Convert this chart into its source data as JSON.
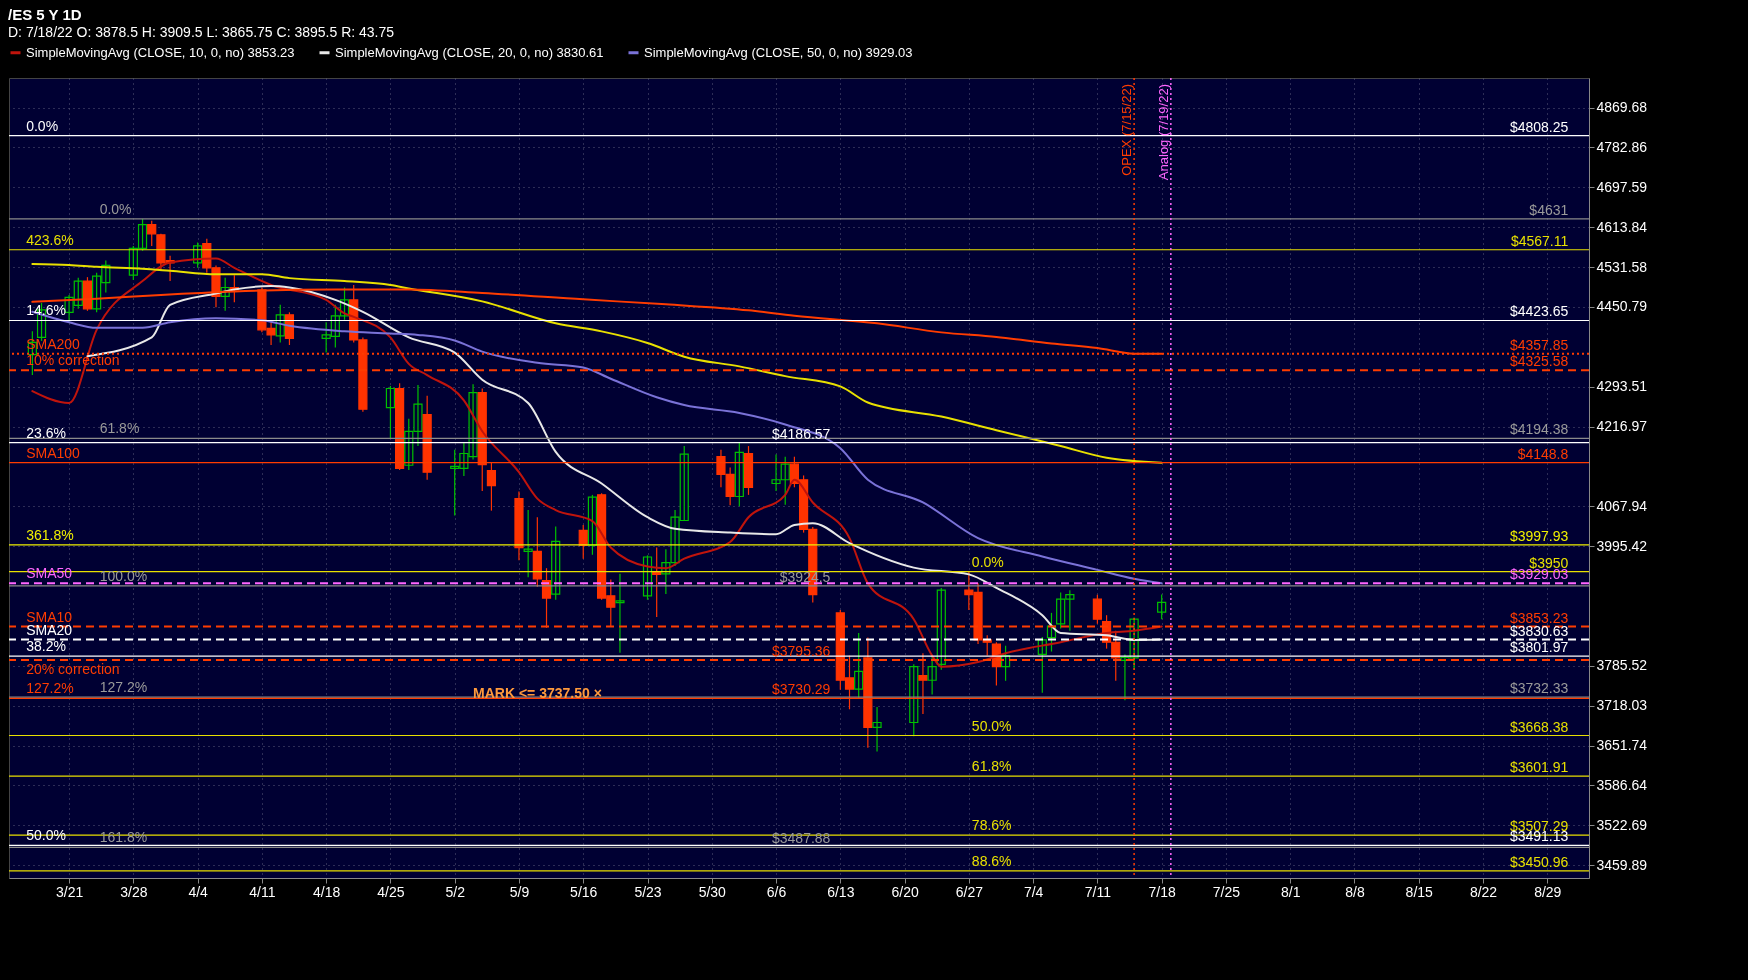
{
  "chart_data": {
    "type": "candlestick",
    "title": "/ES 5 Y 1D",
    "subtitle": "D: 7/18/22 O: 3878.5 H: 3909.5 L: 3865.75 C: 3895.5 R: 43.75",
    "x": [
      "--03-17",
      "--03-18",
      "--03-21",
      "--03-22",
      "--03-23",
      "--03-24",
      "--03-25",
      "--03-28",
      "--03-29",
      "--03-30",
      "--03-31",
      "--04-01",
      "--04-04",
      "--04-05",
      "--04-06",
      "--04-07",
      "--04-08",
      "--04-11",
      "--04-12",
      "--04-13",
      "--04-14",
      "--04-18",
      "--04-19",
      "--04-20",
      "--04-21",
      "--04-22",
      "--04-25",
      "--04-26",
      "--04-27",
      "--04-28",
      "--04-29",
      "--05-02",
      "--05-03",
      "--05-04",
      "--05-05",
      "--05-06",
      "--05-09",
      "--05-10",
      "--05-11",
      "--05-12",
      "--05-13",
      "--05-16",
      "--05-17",
      "--05-18",
      "--05-19",
      "--05-20",
      "--05-23",
      "--05-24",
      "--05-25",
      "--05-26",
      "--05-27",
      "--05-31",
      "--06-01",
      "--06-02",
      "--06-03",
      "--06-06",
      "--06-07",
      "--06-08",
      "--06-09",
      "--06-10",
      "--06-13",
      "--06-14",
      "--06-15",
      "--06-16",
      "--06-17",
      "--06-21",
      "--06-22",
      "--06-23",
      "--06-24",
      "--06-27",
      "--06-28",
      "--06-29",
      "--06-30",
      "--07-01",
      "--07-05",
      "--07-06",
      "--07-07",
      "--07-08",
      "--07-11",
      "--07-12",
      "--07-13",
      "--07-14",
      "--07-15",
      "--07-18"
    ],
    "ohlc": [
      [
        4356,
        4402,
        4316,
        4380
      ],
      [
        4390,
        4459,
        4383,
        4445
      ],
      [
        4440,
        4475,
        4420,
        4470
      ],
      [
        4454,
        4510,
        4447,
        4503
      ],
      [
        4503,
        4511,
        4443,
        4447
      ],
      [
        4447,
        4520,
        4440,
        4513
      ],
      [
        4500,
        4545,
        4480,
        4535
      ],
      [
        4515,
        4575,
        4505,
        4570
      ],
      [
        4570,
        4631,
        4565,
        4619
      ],
      [
        4619,
        4627,
        4575,
        4600
      ],
      [
        4598,
        4600,
        4525,
        4540
      ],
      [
        4545,
        4555,
        4503,
        4540
      ],
      [
        4540,
        4582,
        4530,
        4575
      ],
      [
        4580,
        4590,
        4520,
        4530
      ],
      [
        4530,
        4535,
        4450,
        4472
      ],
      [
        4472,
        4510,
        4443,
        4490
      ],
      [
        4490,
        4515,
        4460,
        4485
      ],
      [
        4485,
        4490,
        4400,
        4405
      ],
      [
        4408,
        4420,
        4375,
        4395
      ],
      [
        4393,
        4455,
        4380,
        4435
      ],
      [
        4435,
        4440,
        4375,
        4388
      ],
      [
        4388,
        4420,
        4360,
        4395
      ],
      [
        4392,
        4455,
        4370,
        4433
      ],
      [
        4433,
        4490,
        4425,
        4465
      ],
      [
        4465,
        4495,
        4380,
        4385
      ],
      [
        4385,
        4390,
        4245,
        4250
      ],
      [
        4253,
        4295,
        4195,
        4290
      ],
      [
        4290,
        4300,
        4135,
        4138
      ],
      [
        4144,
        4232,
        4135,
        4208
      ],
      [
        4208,
        4297,
        4180,
        4260
      ],
      [
        4240,
        4276,
        4117,
        4131
      ],
      [
        4138,
        4173,
        4051,
        4142
      ],
      [
        4138,
        4187,
        4124,
        4166
      ],
      [
        4160,
        4298,
        4155,
        4282
      ],
      [
        4282,
        4290,
        4096,
        4145
      ],
      [
        4134,
        4150,
        4060,
        4106
      ],
      [
        4082,
        4095,
        3970,
        3993
      ],
      [
        3986,
        4061,
        3940,
        3990
      ],
      [
        3986,
        4048,
        3923,
        3937
      ],
      [
        3934,
        3956,
        3851,
        3903
      ],
      [
        3910,
        4031,
        3900,
        4004
      ],
      [
        4024,
        4034,
        3973,
        3997
      ],
      [
        3997,
        4089,
        3980,
        4085
      ],
      [
        4089,
        4092,
        3900,
        3903
      ],
      [
        3907,
        3936,
        3854,
        3887
      ],
      [
        3895,
        3946,
        3808,
        3898
      ],
      [
        3907,
        3979,
        3900,
        3976
      ],
      [
        3950,
        3993,
        3870,
        3945
      ],
      [
        3946,
        3990,
        3910,
        3966
      ],
      [
        3966,
        4061,
        3960,
        4048
      ],
      [
        4042,
        4180,
        4041,
        4165
      ],
      [
        4160,
        4173,
        4103,
        4127
      ],
      [
        4127,
        4140,
        4070,
        4086
      ],
      [
        4086,
        4187,
        4068,
        4168
      ],
      [
        4166,
        4180,
        4089,
        4103
      ],
      [
        4110,
        4164,
        4096,
        4117
      ],
      [
        4117,
        4160,
        4071,
        4146
      ],
      [
        4146,
        4160,
        4103,
        4110
      ],
      [
        4117,
        4125,
        4020,
        4026
      ],
      [
        4026,
        4030,
        3895,
        3909
      ],
      [
        3877,
        3882,
        3745,
        3761
      ],
      [
        3765,
        3803,
        3712,
        3746
      ],
      [
        3746,
        3842,
        3730,
        3776
      ],
      [
        3799,
        3834,
        3648,
        3682
      ],
      [
        3682,
        3716,
        3642,
        3690
      ],
      [
        3690,
        3788,
        3667,
        3784
      ],
      [
        3769,
        3807,
        3704,
        3761
      ],
      [
        3761,
        3803,
        3737,
        3784
      ],
      [
        3788,
        3921,
        3779,
        3917
      ],
      [
        3917,
        3949,
        3882,
        3909
      ],
      [
        3913,
        3929,
        3823,
        3830
      ],
      [
        3830,
        3838,
        3803,
        3826
      ],
      [
        3823,
        3826,
        3752,
        3784
      ],
      [
        3784,
        3820,
        3760,
        3803
      ],
      [
        3805,
        3835,
        3740,
        3830
      ],
      [
        3834,
        3877,
        3810,
        3854
      ],
      [
        3858,
        3913,
        3850,
        3901
      ],
      [
        3901,
        3917,
        3846,
        3909
      ],
      [
        3901,
        3909,
        3858,
        3866
      ],
      [
        3862,
        3873,
        3815,
        3826
      ],
      [
        3826,
        3846,
        3760,
        3799
      ],
      [
        3795,
        3805,
        3727,
        3800
      ],
      [
        3799,
        3869,
        3779,
        3866
      ],
      [
        3878.5,
        3909.5,
        3865.75,
        3895.5
      ]
    ],
    "colors": [
      "#00c000",
      "#00c000",
      "#00c000",
      "#00c000",
      "#ff3300",
      "#00c000",
      "#00c000",
      "#00c000",
      "#00c000",
      "#ff3300",
      "#ff3300",
      "#ff3300",
      "#00c000",
      "#ff3300",
      "#ff3300",
      "#00c000",
      "#ff3300",
      "#ff3300",
      "#ff3300",
      "#00c000",
      "#ff3300",
      "#00c000",
      "#00c000",
      "#00c000",
      "#ff3300",
      "#ff3300",
      "#00c000",
      "#ff3300",
      "#00c000",
      "#00c000",
      "#ff3300",
      "#00c000",
      "#00c000",
      "#00c000",
      "#ff3300",
      "#ff3300",
      "#ff3300",
      "#00c000",
      "#ff3300",
      "#ff3300",
      "#00c000",
      "#ff3300",
      "#00c000",
      "#ff3300",
      "#ff3300",
      "#00c000",
      "#00c000",
      "#ff3300",
      "#00c000",
      "#00c000",
      "#00c000",
      "#ff3300",
      "#ff3300",
      "#00c000",
      "#ff3300",
      "#00c000",
      "#00c000",
      "#ff3300",
      "#ff3300",
      "#ff3300",
      "#ff3300",
      "#ff3300",
      "#00c000",
      "#ff3300",
      "#00c000",
      "#00c000",
      "#ff3300",
      "#00c000",
      "#00c000",
      "#ff3300",
      "#ff3300",
      "#ff3300",
      "#ff3300",
      "#00c000",
      "#00c000",
      "#00c000",
      "#00c000",
      "#00c000",
      "#ff3300",
      "#ff3300",
      "#ff3300",
      "#00c000",
      "#00c000",
      "#00c000"
    ],
    "series": [
      {
        "type": "line",
        "name": "SimpleMovingAvg (CLOSE, 10, 0, no) 3853.23",
        "color": "#c0140c",
        "x": [
          "--03-17",
          "--03-21",
          "--03-24",
          "--03-29",
          "--04-01",
          "--04-06",
          "--04-08",
          "--04-12",
          "--04-18",
          "--04-20",
          "--04-21",
          "--04-25",
          "--04-27",
          "--04-29",
          "--05-03",
          "--05-05",
          "--05-09",
          "--05-11",
          "--05-13",
          "--05-17",
          "--05-19",
          "--05-23",
          "--05-25",
          "--05-27",
          "--06-01",
          "--06-03",
          "--06-07",
          "--06-08",
          "--06-10",
          "--06-14",
          "--06-16",
          "--06-21",
          "--06-23",
          "--06-24",
          "--06-28",
          "--07-01",
          "--07-07",
          "--07-12",
          "--07-15",
          "--07-18"
        ],
        "values": [
          4285,
          4262,
          4405,
          4503,
          4541,
          4549,
          4530,
          4495,
          4465,
          4438,
          4431,
          4390,
          4338,
          4316,
          4267,
          4208,
          4131,
          4082,
          4061,
          4041,
          3993,
          3959,
          3956,
          3973,
          4003,
          4048,
          4089,
          4117,
          4075,
          4010,
          3929,
          3866,
          3803,
          3784,
          3792,
          3807,
          3826,
          3842,
          3846,
          3853.23
        ]
      },
      {
        "type": "line",
        "name": "SimpleMovingAvg (CLOSE, 20, 0, no) 3830.61",
        "color": "#e8e8e8",
        "x": [
          "--03-23",
          "--03-30",
          "--04-01",
          "--04-06",
          "--04-08",
          "--04-12",
          "--04-14",
          "--04-19",
          "--04-22",
          "--04-27",
          "--05-02",
          "--05-05",
          "--05-10",
          "--05-13",
          "--05-18",
          "--05-23",
          "--05-26",
          "--06-01",
          "--06-06",
          "--06-08",
          "--06-10",
          "--06-14",
          "--06-21",
          "--06-27",
          "--06-30",
          "--07-05",
          "--07-07",
          "--07-12",
          "--07-15",
          "--07-18"
        ],
        "values": [
          4353,
          4390,
          4455,
          4478,
          4486,
          4493,
          4490,
          4465,
          4441,
          4390,
          4360,
          4307,
          4262,
          4169,
          4110,
          4048,
          4027,
          4020,
          4017,
          4034,
          4037,
          4001,
          3957,
          3945,
          3921,
          3873,
          3842,
          3838,
          3830,
          3830.61
        ]
      },
      {
        "type": "line",
        "name": "SimpleMovingAvg (CLOSE, 50, 0, no) 3929.03",
        "color": "#7a72d8",
        "x": [
          "--03-17",
          "--03-21",
          "--03-24",
          "--03-29",
          "--04-01",
          "--04-06",
          "--04-11",
          "--04-14",
          "--04-20",
          "--04-25",
          "--04-28",
          "--05-02",
          "--05-05",
          "--05-11",
          "--05-16",
          "--05-19",
          "--05-24",
          "--05-27",
          "--06-02",
          "--06-07",
          "--06-13",
          "--06-16",
          "--06-22",
          "--06-28",
          "--07-05",
          "--07-11",
          "--07-15",
          "--07-18"
        ],
        "values": [
          4441,
          4420,
          4409,
          4409,
          4420,
          4428,
          4424,
          4413,
          4402,
          4398,
          4395,
          4384,
          4362,
          4340,
          4331,
          4309,
          4273,
          4258,
          4243,
          4221,
          4176,
          4117,
          4075,
          4010,
          3977,
          3953,
          3937,
          3929.03
        ]
      },
      {
        "type": "line",
        "color": "#e8e000",
        "x": [
          "--03-17",
          "--03-21",
          "--03-24",
          "--03-29",
          "--04-01",
          "--04-06",
          "--04-11",
          "--04-14",
          "--04-20",
          "--04-25",
          "--04-27",
          "--05-05",
          "--05-13",
          "--05-18",
          "--05-23",
          "--05-27",
          "--06-02",
          "--06-07",
          "--06-13",
          "--06-16",
          "--06-24",
          "--06-30",
          "--07-07",
          "--07-12",
          "--07-18"
        ],
        "values": [
          4538,
          4536,
          4532,
          4528,
          4524,
          4517,
          4517,
          4509,
          4503,
          4495,
          4488,
          4462,
          4418,
          4402,
          4379,
          4352,
          4333,
          4314,
          4294,
          4263,
          4236,
          4210,
          4180,
          4158,
          4148.79
        ]
      },
      {
        "type": "line",
        "color": "#ff3c00",
        "x": [
          "--03-17",
          "--03-24",
          "--03-31",
          "--04-08",
          "--04-19",
          "--04-27",
          "--05-05",
          "--05-16",
          "--05-25",
          "--06-03",
          "--06-08",
          "--06-17",
          "--06-24",
          "--06-30",
          "--07-06",
          "--07-11",
          "--07-15",
          "--07-18"
        ],
        "values": [
          4461,
          4467,
          4475,
          4482,
          4486,
          4486,
          4479,
          4466,
          4456,
          4444,
          4433,
          4418,
          4400,
          4391,
          4378,
          4369,
          4358,
          4357.84
        ]
      }
    ],
    "ref_lines": [
      {
        "axis": "y",
        "value": 4808.25,
        "label": "$4808.25",
        "color": "#ffffff",
        "line_style": "solid"
      },
      {
        "axis": "y",
        "value": 4631,
        "label": "$4631",
        "color": "#8a8a8a",
        "line_style": "solid"
      },
      {
        "axis": "y",
        "value": 4567.11,
        "label": "$4567.11",
        "color": "#e8e000",
        "line_style": "solid"
      },
      {
        "axis": "y",
        "value": 4423.65,
        "label": "$4423.65",
        "color": "#ffffff",
        "line_style": "solid"
      },
      {
        "axis": "y",
        "value": 4357.85,
        "label": "$4357.85",
        "color": "#ff3c00",
        "line_style": "dotted"
      },
      {
        "axis": "y",
        "value": 4325.58,
        "label": "$4325.58",
        "color": "#ff3c00",
        "line_style": "dashed"
      },
      {
        "axis": "y",
        "value": 4194.38,
        "label": "$4194.38",
        "color": "#8a8a8a",
        "line_style": "solid"
      },
      {
        "axis": "y",
        "value": 4186.57,
        "label": "$4186.57",
        "color": "#ffffff",
        "line_style": "solid"
      },
      {
        "axis": "y",
        "value": 4148.8,
        "label": "$4148.8",
        "color": "#ff3c00",
        "line_style": "solid"
      },
      {
        "axis": "y",
        "value": 3997.93,
        "label": "$3997.93",
        "color": "#f0f000",
        "line_style": "solid"
      },
      {
        "axis": "y",
        "value": 3950,
        "label": "$3950",
        "color": "#e8e000",
        "line_style": "solid"
      },
      {
        "axis": "y",
        "value": 3929.03,
        "label": "$3929.03",
        "color": "#ff66ff",
        "line_style": "dashed"
      },
      {
        "axis": "y",
        "value": 3924.5,
        "label": "$3924.5",
        "color": "#8a8a8a",
        "line_style": "solid"
      },
      {
        "axis": "y",
        "value": 3853.23,
        "label": "$3853.23",
        "color": "#ff3c00",
        "line_style": "dashed"
      },
      {
        "axis": "y",
        "value": 3830.63,
        "label": "$3830.63",
        "color": "#ffffff",
        "line_style": "dashed"
      },
      {
        "axis": "y",
        "value": 3801.97,
        "label": "$3801.97",
        "color": "#ffffff",
        "line_style": "solid"
      },
      {
        "axis": "y",
        "value": 3795.36,
        "label": "$3795.36",
        "color": "#ff3c00",
        "line_style": "dashed"
      },
      {
        "axis": "y",
        "value": 3732.33,
        "label": "$3732.33",
        "color": "#8a8a8a",
        "line_style": "solid"
      },
      {
        "axis": "y",
        "value": 3730.29,
        "label": "$3730.29",
        "color": "#ff3c00",
        "line_style": "solid"
      },
      {
        "axis": "y",
        "value": 3668.38,
        "label": "$3668.38",
        "color": "#e8e000",
        "line_style": "solid"
      },
      {
        "axis": "y",
        "value": 3601.91,
        "label": "$3601.91",
        "color": "#e8e000",
        "line_style": "solid"
      },
      {
        "axis": "y",
        "value": 3507.29,
        "label": "$3507.29",
        "color": "#e8e000",
        "line_style": "solid"
      },
      {
        "axis": "y",
        "value": 3491.13,
        "label": "$3491.13",
        "color": "#ffffff",
        "line_style": "solid"
      },
      {
        "axis": "y",
        "value": 3487.88,
        "label": "$3487.88",
        "color": "#8a8a8a",
        "line_style": "solid"
      },
      {
        "axis": "y",
        "value": 3450.96,
        "label": "$3450.96",
        "color": "#e8e000",
        "line_style": "solid"
      },
      {
        "axis": "x",
        "value": "--07-15",
        "label": "OPEX (7/15/22)",
        "color": "#ff3c00",
        "line_style": "dotted"
      },
      {
        "axis": "x",
        "value": "--07-19",
        "label": "Analog (7/19/22)",
        "color": "#ff66ff",
        "line_style": "dotted"
      }
    ],
    "annotations": [
      {
        "text": "0.0%",
        "x": "--03-16",
        "y": 4808.25
      },
      {
        "text": "0.0%",
        "x": "--03-24",
        "y": 4631
      },
      {
        "text": "423.6%",
        "x": "--03-16",
        "y": 4567.11
      },
      {
        "text": "14.6%",
        "x": "--03-16",
        "y": 4423.65
      },
      {
        "text": "SMA200",
        "x": "--03-16",
        "y": 4357.85
      },
      {
        "text": "10% correction",
        "x": "--03-16",
        "y": 4325.58
      },
      {
        "text": "61.8%",
        "x": "--03-24",
        "y": 4194.38
      },
      {
        "text": "23.6%",
        "x": "--03-16",
        "y": 4186.57
      },
      {
        "text": "SMA100",
        "x": "--03-16",
        "y": 4148.8
      },
      {
        "text": "361.8%",
        "x": "--03-16",
        "y": 3997.93
      },
      {
        "text": "0.0%",
        "x": "--06-27",
        "y": 3950
      },
      {
        "text": "SMA50",
        "x": "--03-16",
        "y": 3929.03
      },
      {
        "text": "100.0%",
        "x": "--03-24",
        "y": 3924.5
      },
      {
        "text": "SMA10",
        "x": "--03-16",
        "y": 3853.23
      },
      {
        "text": "SMA20",
        "x": "--03-16",
        "y": 3830.63
      },
      {
        "text": "38.2%",
        "x": "--03-16",
        "y": 3801.97
      },
      {
        "text": "20% correction",
        "x": "--03-16",
        "y": 3795.36
      },
      {
        "text": "127.2%",
        "x": "--03-24",
        "y": 3732.33
      },
      {
        "text": "127.2%",
        "x": "--03-16",
        "y": 3730.29
      },
      {
        "text": "50.0%",
        "x": "--06-27",
        "y": 3668.38
      },
      {
        "text": "61.8%",
        "x": "--06-27",
        "y": 3601.91
      },
      {
        "text": "78.6%",
        "x": "--06-27",
        "y": 3507.29
      },
      {
        "text": "50.0%",
        "x": "--03-16",
        "y": 3491.13
      },
      {
        "text": "161.8%",
        "x": "--03-24",
        "y": 3487.88
      },
      {
        "text": "88.6%",
        "x": "--06-27",
        "y": 3450.96
      },
      {
        "text": "MARK <= 3737.50 ×",
        "x": "--05-04",
        "y": 3737.5
      }
    ],
    "xlim": [
      "--03-15",
      "--09-02"
    ],
    "xticks": [
      {
        "value": "--03-21",
        "label": "3/21"
      },
      {
        "value": "--03-28",
        "label": "3/28"
      },
      {
        "value": "--04-04",
        "label": "4/4"
      },
      {
        "value": "--04-11",
        "label": "4/11"
      },
      {
        "value": "--04-18",
        "label": "4/18"
      },
      {
        "value": "--04-25",
        "label": "4/25"
      },
      {
        "value": "--05-02",
        "label": "5/2"
      },
      {
        "value": "--05-09",
        "label": "5/9"
      },
      {
        "value": "--05-16",
        "label": "5/16"
      },
      {
        "value": "--05-23",
        "label": "5/23"
      },
      {
        "value": "--05-30",
        "label": "5/30"
      },
      {
        "value": "--06-06",
        "label": "6/6"
      },
      {
        "value": "--06-13",
        "label": "6/13"
      },
      {
        "value": "--06-20",
        "label": "6/20"
      },
      {
        "value": "--06-27",
        "label": "6/27"
      },
      {
        "value": "--07-04",
        "label": "7/4"
      },
      {
        "value": "--07-11",
        "label": "7/11"
      },
      {
        "value": "--07-18",
        "label": "7/18"
      },
      {
        "value": "--07-25",
        "label": "7/25"
      },
      {
        "value": "--08-01",
        "label": "8/1"
      },
      {
        "value": "--08-08",
        "label": "8/8"
      },
      {
        "value": "--08-15",
        "label": "8/15"
      },
      {
        "value": "--08-22",
        "label": "8/22"
      },
      {
        "value": "--08-29",
        "label": "8/29"
      }
    ],
    "ylim": [
      3440,
      4935
    ],
    "yticks": [
      4869.68,
      4782.86,
      4697.59,
      4613.84,
      4531.58,
      4450.79,
      4293.51,
      4216.97,
      4067.94,
      3995.42,
      3785.52,
      3718.03,
      3651.74,
      3586.64,
      3522.69,
      3459.89
    ],
    "log": true,
    "grid": true,
    "legend": "top"
  }
}
